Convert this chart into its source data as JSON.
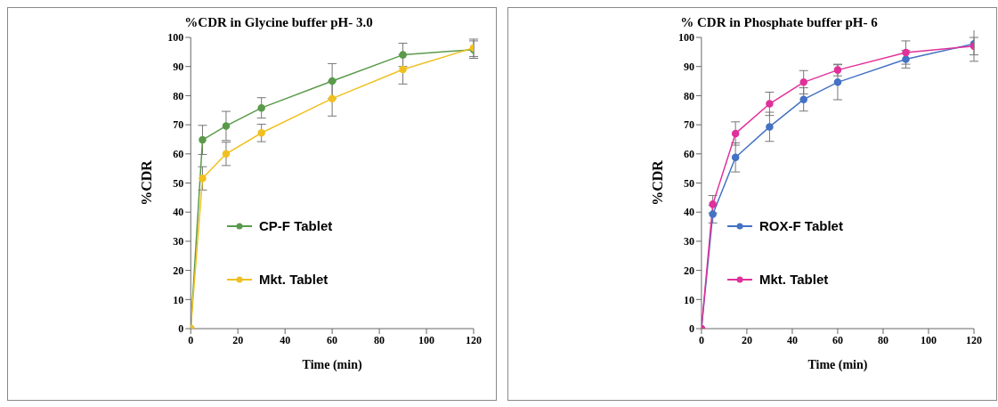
{
  "chart_data": [
    {
      "type": "line",
      "title": "%CDR in Glycine buffer pH- 3.0",
      "xlabel": "Time (min)",
      "ylabel": "%CDR",
      "x": [
        0,
        5,
        15,
        30,
        60,
        90,
        120
      ],
      "xlim": [
        0,
        120
      ],
      "xticks": [
        0,
        20,
        40,
        60,
        80,
        100,
        120
      ],
      "ylim": [
        0,
        100
      ],
      "yticks": [
        0,
        10,
        20,
        30,
        40,
        50,
        60,
        70,
        80,
        90,
        100
      ],
      "grid": false,
      "legend": "left",
      "marker": "circle",
      "line_style": "solid",
      "series": [
        {
          "name": "CP-F Tablet",
          "color": "#5a9a4a",
          "values": [
            0,
            64.8,
            69.6,
            75.8,
            85,
            94,
            95.8
          ],
          "errors": [
            null,
            5,
            5,
            3.5,
            6,
            4,
            3
          ]
        },
        {
          "name": "Mkt. Tablet",
          "color": "#f0c020",
          "values": [
            0,
            51.6,
            60,
            67.2,
            79,
            89,
            96.4
          ],
          "errors": [
            null,
            4,
            4,
            3,
            6,
            5,
            3
          ]
        }
      ]
    },
    {
      "type": "line",
      "title": "% CDR in Phosphate buffer pH- 6",
      "xlabel": "Time (min)",
      "ylabel": "%CDR",
      "x": [
        0,
        5,
        15,
        30,
        45,
        60,
        90,
        120
      ],
      "xlim": [
        0,
        120
      ],
      "xticks": [
        0,
        20,
        40,
        60,
        80,
        100,
        120
      ],
      "ylim": [
        0,
        100
      ],
      "yticks": [
        0,
        10,
        20,
        30,
        40,
        50,
        60,
        70,
        80,
        90,
        100
      ],
      "grid": false,
      "legend": "left",
      "marker": "circle",
      "line_style": "solid",
      "series": [
        {
          "name": "ROX-F Tablet",
          "color": "#4472c4",
          "values": [
            0,
            39.3,
            58.8,
            69.3,
            78.7,
            84.6,
            92.5,
            97.8
          ],
          "errors": [
            null,
            3,
            5,
            5,
            4,
            6,
            3,
            6
          ]
        },
        {
          "name": "Mkt. Tablet",
          "color": "#e0309a",
          "values": [
            0,
            42.7,
            67,
            77.2,
            84.6,
            88.8,
            94.8,
            97
          ],
          "errors": [
            null,
            3,
            4,
            4,
            4,
            2,
            4,
            3
          ]
        }
      ]
    }
  ]
}
